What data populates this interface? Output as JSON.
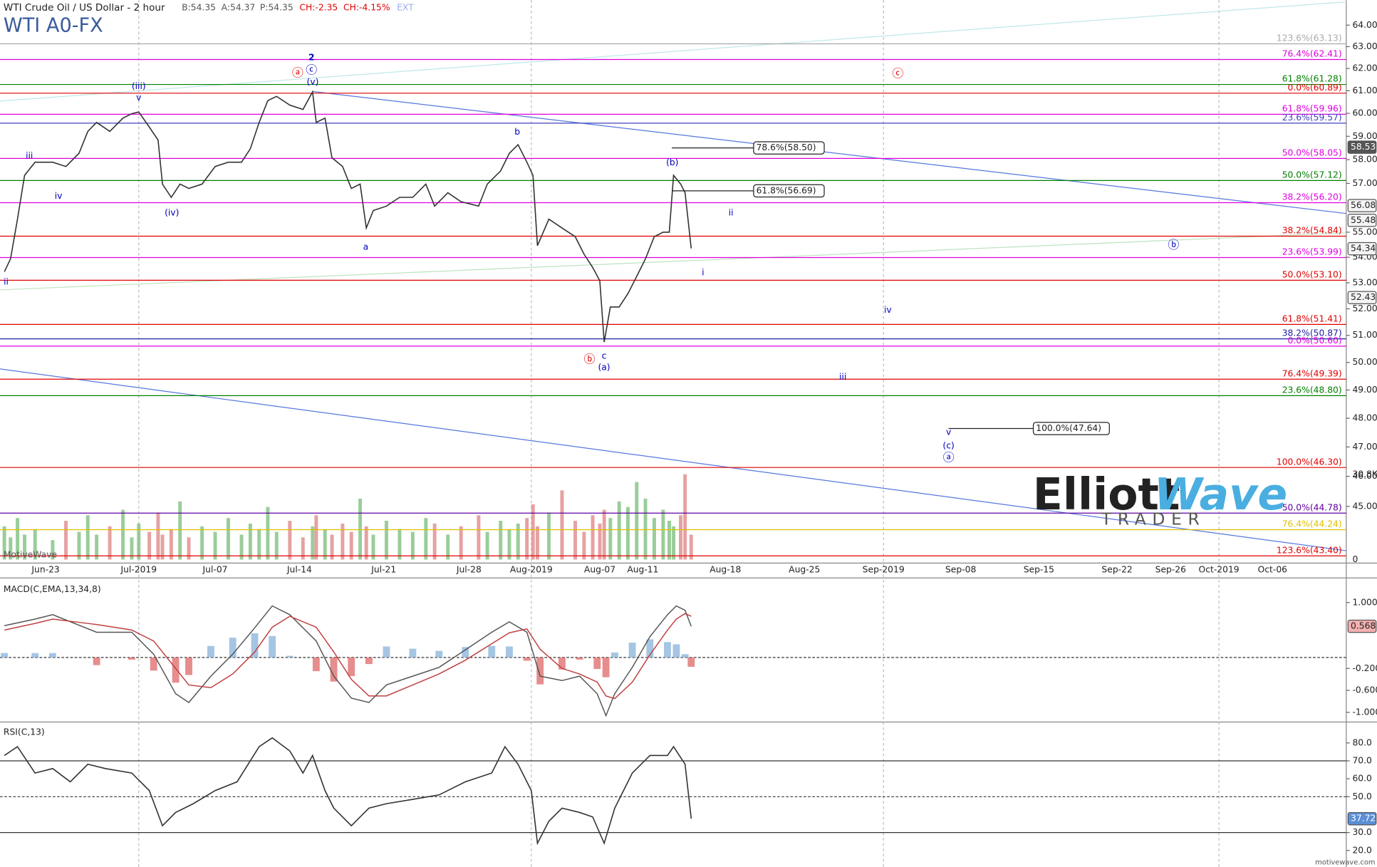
{
  "header": {
    "title": "WTI Crude Oil / US Dollar - 2 hour",
    "quote": [
      "B:54.35",
      "A:54.37",
      "P:54.35",
      "CH:-2.35",
      "CH:-4.15%",
      "EXT"
    ],
    "symbol": "WTI A0-FX"
  },
  "watermark": "MotiveWave",
  "footer": "motivewave.com",
  "logo": [
    "Elliott",
    "Wave",
    "TRADER"
  ],
  "chart_data": [
    {
      "type": "line",
      "log_scale": true,
      "color": "#333333",
      "xlim": [
        19.1,
        134.6
      ],
      "xticks": [
        {
          "value": 23,
          "label": "Jun-23"
        },
        {
          "value": 31,
          "label": "Jul-2019"
        },
        {
          "value": 37,
          "label": "Jul-07"
        },
        {
          "value": 44,
          "label": "Jul-14"
        },
        {
          "value": 51,
          "label": "Jul-21"
        },
        {
          "value": 58,
          "label": "Jul-28"
        },
        {
          "value": 62,
          "label": "Aug-2019"
        },
        {
          "value": 68,
          "label": "Aug-07"
        },
        {
          "value": 72,
          "label": "Aug-11"
        },
        {
          "value": 79,
          "label": "Aug-18"
        },
        {
          "value": 86,
          "label": "Aug-25"
        },
        {
          "value": 93,
          "label": "Sep-2019"
        },
        {
          "value": 100,
          "label": "Sep-08"
        },
        {
          "value": 107,
          "label": "Sep-15"
        },
        {
          "value": 114,
          "label": "Sep-22"
        },
        {
          "value": 118,
          "label": "Sep-26"
        },
        {
          "value": 123,
          "label": "Oct-2019"
        },
        {
          "value": 128,
          "label": "Oct-06"
        }
      ],
      "ylim": [
        43.2,
        65.1
      ],
      "yticks": [
        {
          "value": 64,
          "label": "64.00"
        },
        {
          "value": 63,
          "label": "63.00"
        },
        {
          "value": 62,
          "label": "62.00"
        },
        {
          "value": 61,
          "label": "61.00"
        },
        {
          "value": 60,
          "label": "60.00"
        },
        {
          "value": 59,
          "label": "59.00"
        },
        {
          "value": 58,
          "label": "58.00"
        },
        {
          "value": 57,
          "label": "57.00"
        },
        {
          "value": 55,
          "label": "55.00"
        },
        {
          "value": 54,
          "label": "54.00"
        },
        {
          "value": 53,
          "label": "53.00"
        },
        {
          "value": 52,
          "label": "52.00"
        },
        {
          "value": 51,
          "label": "51.00"
        },
        {
          "value": 50,
          "label": "50.00"
        },
        {
          "value": 49,
          "label": "49.00"
        },
        {
          "value": 48,
          "label": "48.00"
        },
        {
          "value": 47,
          "label": "47.00"
        },
        {
          "value": 46,
          "label": "46.00"
        },
        {
          "value": 45,
          "label": "45.00"
        }
      ],
      "x": [
        19.45,
        19.98,
        20.58,
        21.19,
        22.09,
        23.6,
        24.74,
        25.87,
        26.62,
        27.38,
        28.51,
        29.64,
        30.4,
        31.0,
        31.83,
        32.52,
        32.86,
        33.55,
        34.24,
        34.93,
        35.97,
        37.0,
        38.09,
        39.19,
        39.92,
        40.65,
        41.37,
        42.1,
        43.2,
        44.29,
        45.09,
        45.39,
        46.12,
        46.7,
        47.58,
        48.31,
        49.04,
        49.55,
        50.13,
        51.22,
        52.3,
        53.38,
        54.46,
        55.18,
        56.27,
        57.35,
        58.62,
        59.18,
        60.03,
        60.59,
        61.15,
        61.72,
        62.15,
        62.54,
        63.54,
        64.69,
        65.85,
        66.62,
        67.38,
        68.0,
        68.41,
        68.98,
        69.8,
        70.61,
        71.43,
        72.22,
        72.97,
        73.72,
        74.24,
        74.61,
        75.21,
        75.58,
        76.1
      ],
      "values": [
        53.43,
        53.94,
        55.53,
        57.34,
        57.89,
        57.89,
        57.71,
        58.27,
        59.21,
        59.6,
        59.21,
        59.79,
        59.98,
        60.06,
        59.4,
        58.84,
        56.97,
        56.42,
        56.97,
        56.79,
        56.97,
        57.71,
        57.89,
        57.89,
        58.46,
        59.6,
        60.56,
        60.75,
        60.36,
        60.17,
        60.95,
        59.6,
        59.79,
        58.08,
        57.71,
        56.79,
        56.97,
        55.17,
        55.88,
        56.06,
        56.42,
        56.42,
        56.97,
        56.06,
        56.61,
        56.24,
        56.06,
        56.97,
        57.52,
        58.27,
        58.64,
        57.89,
        57.34,
        54.46,
        55.53,
        55.17,
        54.82,
        54.12,
        53.6,
        53.08,
        50.75,
        52.07,
        52.07,
        52.58,
        53.25,
        53.94,
        54.82,
        55.0,
        55.0,
        57.34,
        56.97,
        56.61,
        54.35
      ],
      "volume": {
        "ylim": [
          0,
          30800
        ],
        "yticks": [
          {
            "value": 30800,
            "label": "30.8K"
          },
          0
        ],
        "values": [
          12000,
          8000,
          15000,
          9000,
          11000,
          7000,
          14000,
          10000,
          16000,
          9000,
          12000,
          18000,
          8000,
          13000,
          10000,
          17000,
          9000,
          11000,
          21000,
          8000,
          12000,
          10000,
          15000,
          9000,
          13000,
          11000,
          19000,
          10000,
          14000,
          8000,
          12000,
          16000,
          11000,
          9000,
          13000,
          10000,
          22000,
          12000,
          9000,
          14000,
          11000,
          10000,
          15000,
          13000,
          9000,
          12000,
          16000,
          10000,
          14000,
          11000,
          13000,
          15000,
          20000,
          12000,
          17000,
          25000,
          14000,
          10000,
          16000,
          13000,
          18000,
          15000,
          21000,
          19000,
          28000,
          22000,
          15000,
          18000,
          14000,
          12000,
          16000,
          30800,
          9000
        ]
      },
      "levels": [
        {
          "label": "123.6%(63.13)",
          "value": 63.13,
          "color": "#aaaaaa"
        },
        {
          "label": "76.4%(62.41)",
          "value": 62.41,
          "color": "#e000e0"
        },
        {
          "label": "61.8%(61.28)",
          "value": 61.28,
          "color": "#008000"
        },
        {
          "label": "0.0%(60.89)",
          "value": 60.89,
          "color": "#e00000"
        },
        {
          "label": "61.8%(59.96)",
          "value": 59.96,
          "color": "#e000e0"
        },
        {
          "label": "23.6%(59.57)",
          "value": 59.57,
          "color": "#4040c0"
        },
        {
          "label": "50.0%(58.05)",
          "value": 58.05,
          "color": "#e000e0"
        },
        {
          "label": "50.0%(57.12)",
          "value": 57.12,
          "color": "#008000"
        },
        {
          "label": "38.2%(56.20)",
          "value": 56.2,
          "color": "#e000e0"
        },
        {
          "label": "38.2%(54.84)",
          "value": 54.84,
          "color": "#e00000"
        },
        {
          "label": "23.6%(53.99)",
          "value": 53.99,
          "color": "#e000e0"
        },
        {
          "label": "50.0%(53.10)",
          "value": 53.1,
          "color": "#e00000"
        },
        {
          "label": "61.8%(51.41)",
          "value": 51.41,
          "color": "#e00000"
        },
        {
          "label": "38.2%(50.87)",
          "value": 50.87,
          "color": "#2020a0"
        },
        {
          "label": "0.0%(50.60)",
          "value": 50.6,
          "color": "#e000e0"
        },
        {
          "label": "76.4%(49.39)",
          "value": 49.39,
          "color": "#e00000"
        },
        {
          "label": "23.6%(48.80)",
          "value": 48.8,
          "color": "#008000"
        },
        {
          "label": "100.0%(46.30)",
          "value": 46.3,
          "color": "#e00000"
        },
        {
          "label": "50.0%(44.78)",
          "value": 44.78,
          "color": "#6000a0"
        },
        {
          "label": "76.4%(44.24)",
          "value": 44.24,
          "color": "#e0c000"
        },
        {
          "label": "123.6%(43.40)",
          "value": 43.4,
          "color": "#e00000"
        }
      ],
      "callouts": [
        {
          "label": "78.6%(58.50)",
          "value": 58.5,
          "x": [
            74.46,
            81.5
          ]
        },
        {
          "label": "61.8%(56.69)",
          "value": 56.69,
          "x": [
            74.46,
            81.5
          ]
        },
        {
          "label": "100.0%(47.64)",
          "value": 47.64,
          "x": [
            98.9,
            106.5
          ]
        }
      ],
      "annotations": [
        {
          "text": "2",
          "x": 45.0,
          "y": 62.49,
          "color": "#0000c0"
        },
        {
          "text": "ⓐ",
          "x": 43.85,
          "y": 61.78,
          "color": "#e00000"
        },
        {
          "text": "ⓒ",
          "x": 45.0,
          "y": 61.9,
          "color": "#0000c0"
        },
        {
          "text": "(v)",
          "x": 45.1,
          "y": 61.38,
          "color": "#0000c0"
        },
        {
          "text": "(iii)",
          "x": 31.0,
          "y": 61.18,
          "color": "#0000c0"
        },
        {
          "text": "v",
          "x": 31.0,
          "y": 60.68,
          "color": "#0000c0"
        },
        {
          "text": "iii",
          "x": 21.6,
          "y": 58.16,
          "color": "#0000c0"
        },
        {
          "text": "iv",
          "x": 24.1,
          "y": 56.46,
          "color": "#0000c0"
        },
        {
          "text": "(iv)",
          "x": 33.6,
          "y": 55.78,
          "color": "#0000c0"
        },
        {
          "text": "ii",
          "x": 19.6,
          "y": 53.02,
          "color": "#0000c0"
        },
        {
          "text": "a",
          "x": 49.5,
          "y": 54.4,
          "color": "#0000c0"
        },
        {
          "text": "b",
          "x": 61.1,
          "y": 59.18,
          "color": "#0000c0"
        },
        {
          "text": "c",
          "x": 68.4,
          "y": 50.23,
          "color": "#0000c0"
        },
        {
          "text": "(a)",
          "x": 68.4,
          "y": 49.81,
          "color": "#0000c0"
        },
        {
          "text": "ⓑ",
          "x": 67.1,
          "y": 50.1,
          "color": "#e00000"
        },
        {
          "text": "(b)",
          "x": 74.5,
          "y": 57.86,
          "color": "#0000c0"
        },
        {
          "text": "ii",
          "x": 79.5,
          "y": 55.78,
          "color": "#0000c0"
        },
        {
          "text": "i",
          "x": 77.1,
          "y": 53.39,
          "color": "#0000c0"
        },
        {
          "text": "iv",
          "x": 93.4,
          "y": 51.94,
          "color": "#0000c0"
        },
        {
          "text": "iii",
          "x": 89.4,
          "y": 49.46,
          "color": "#0000c0"
        },
        {
          "text": "v",
          "x": 98.9,
          "y": 47.5,
          "color": "#0000c0"
        },
        {
          "text": "(c)",
          "x": 98.9,
          "y": 47.04,
          "color": "#0000c0"
        },
        {
          "text": "ⓐ",
          "x": 98.9,
          "y": 46.62,
          "color": "#0000c0"
        },
        {
          "text": "ⓑ",
          "x": 118.3,
          "y": 54.47,
          "color": "#0000c0"
        },
        {
          "text": "ⓒ",
          "x": 94.3,
          "y": 61.74,
          "color": "#e00000"
        }
      ],
      "price_markers": [
        58.53,
        56.08,
        55.48,
        54.34,
        52.43
      ]
    },
    {
      "type": "line",
      "title": "MACD(C,EMA,13,34,8)",
      "ylim": [
        -1.144,
        1.384
      ],
      "yticks": [
        {
          "value": 1,
          "label": "1.000"
        },
        {
          "value": -0.2,
          "label": "-0.200"
        },
        {
          "value": -0.6,
          "label": "-0.600"
        },
        {
          "value": -1,
          "label": "-1.000"
        }
      ],
      "x": [
        19.45,
        22.09,
        23.6,
        27.38,
        30.4,
        32.17,
        33.9,
        34.93,
        36.66,
        38.46,
        40.28,
        41.74,
        43.2,
        45.39,
        46.85,
        48.31,
        49.77,
        51.22,
        53.38,
        55.54,
        57.71,
        59.46,
        60.59,
        61.72,
        62.77,
        64.69,
        66.23,
        67.77,
        68.57,
        69.39,
        71.02,
        72.6,
        74.09,
        74.84,
        75.58,
        76.1
      ],
      "series": [
        {
          "color": "#555555",
          "values": [
            0.58,
            0.7,
            0.78,
            0.46,
            0.46,
            0.06,
            -0.66,
            -0.82,
            -0.34,
            0.06,
            0.54,
            0.94,
            0.78,
            0.3,
            -0.34,
            -0.74,
            -0.82,
            -0.5,
            -0.34,
            -0.18,
            0.14,
            0.46,
            0.65,
            0.46,
            -0.34,
            -0.42,
            -0.34,
            -0.66,
            -1.06,
            -0.66,
            -0.18,
            0.38,
            0.78,
            0.94,
            0.86,
            0.568
          ]
        },
        {
          "color": "#c04040",
          "values": [
            0.5,
            0.62,
            0.7,
            0.6,
            0.5,
            0.3,
            -0.2,
            -0.5,
            -0.55,
            -0.3,
            0.1,
            0.55,
            0.75,
            0.55,
            0.1,
            -0.4,
            -0.7,
            -0.7,
            -0.5,
            -0.3,
            -0.05,
            0.25,
            0.45,
            0.52,
            0.15,
            -0.2,
            -0.3,
            -0.45,
            -0.7,
            -0.75,
            -0.45,
            0.05,
            0.5,
            0.7,
            0.8,
            0.75
          ]
        }
      ],
      "histogram": [
        0.08,
        0.08,
        0.08,
        -0.14,
        -0.04,
        -0.24,
        -0.46,
        -0.32,
        0.21,
        0.36,
        0.44,
        0.39,
        0.03,
        -0.25,
        -0.44,
        -0.34,
        -0.12,
        0.2,
        0.16,
        0.12,
        0.19,
        0.21,
        0.2,
        -0.06,
        -0.49,
        -0.22,
        -0.04,
        -0.21,
        -0.36,
        0.09,
        0.27,
        0.33,
        0.28,
        0.24,
        0.06,
        -0.17
      ],
      "marker": 0.568
    },
    {
      "type": "line",
      "title": "RSI(C,13)",
      "color": "#333333",
      "ylim": [
        11.8,
        90.2
      ],
      "yticks": [
        {
          "value": 80,
          "label": "80.0"
        },
        {
          "value": 70,
          "label": "70.0"
        },
        {
          "value": 60,
          "label": "60.0"
        },
        {
          "value": 50,
          "label": "50.0"
        },
        {
          "value": 30,
          "label": "30.0"
        },
        {
          "value": 20,
          "label": "20.0"
        }
      ],
      "bands": [
        70,
        30
      ],
      "midline": 50,
      "x": [
        19.45,
        20.58,
        22.09,
        23.6,
        25.11,
        26.62,
        28.13,
        30.4,
        31.83,
        32.86,
        33.9,
        35.28,
        37.0,
        38.82,
        40.65,
        41.74,
        43.2,
        44.29,
        45.09,
        46.12,
        46.85,
        48.31,
        49.77,
        51.22,
        53.38,
        55.54,
        57.71,
        59.46,
        60.31,
        61.15,
        62.0,
        62.54,
        63.54,
        64.69,
        66.23,
        67.38,
        68.41,
        69.39,
        71.02,
        72.6,
        74.09,
        74.61,
        75.58,
        76.1
      ],
      "values": [
        73.0,
        77.9,
        63.2,
        65.7,
        58.3,
        68.1,
        65.7,
        63.2,
        53.4,
        33.8,
        41.2,
        46.1,
        53.4,
        58.3,
        77.9,
        82.8,
        75.5,
        63.2,
        73.0,
        53.4,
        43.6,
        33.8,
        43.6,
        46.1,
        48.5,
        51.0,
        58.3,
        63.2,
        77.9,
        68.1,
        53.4,
        24.0,
        36.3,
        43.6,
        41.2,
        38.7,
        24.0,
        43.6,
        63.2,
        73.0,
        73.0,
        77.9,
        68.1,
        37.72
      ],
      "marker": 37.72
    }
  ]
}
